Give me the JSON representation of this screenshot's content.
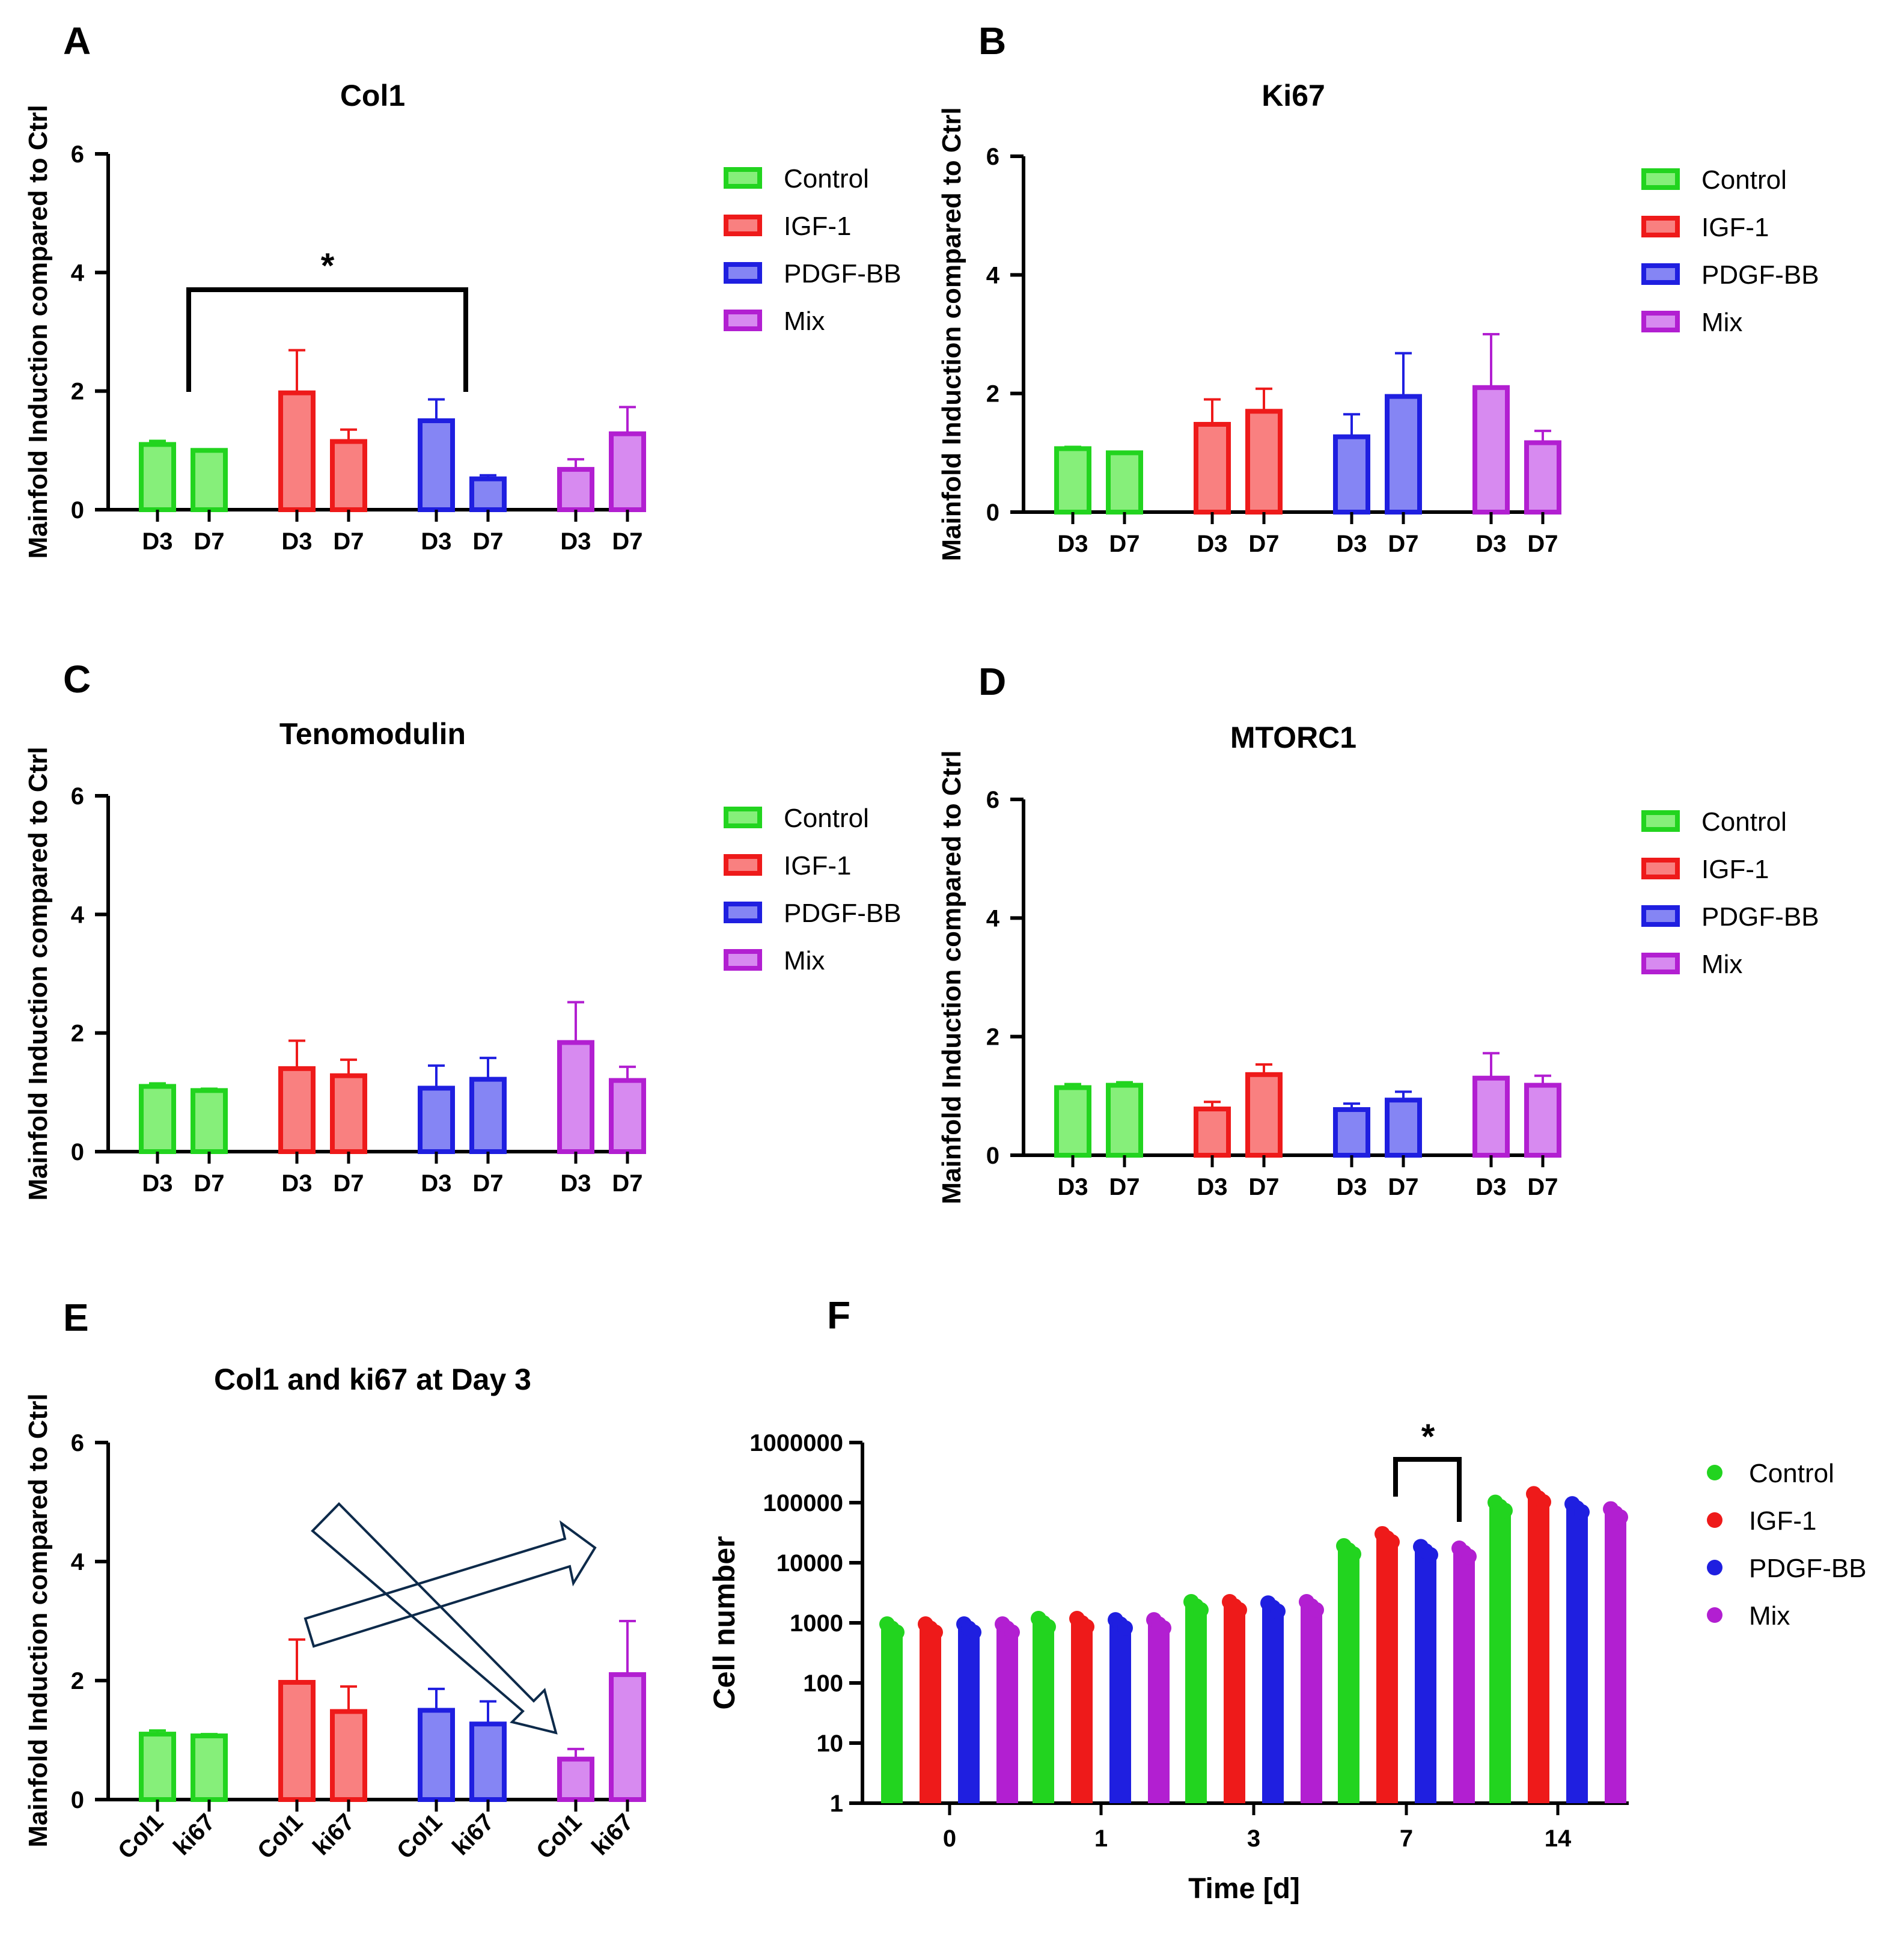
{
  "figure": {
    "panel_letters": [
      "A",
      "B",
      "C",
      "D",
      "E",
      "F"
    ],
    "shared_ylabel": "Mainfold Induction compared to Ctrl"
  },
  "colors": {
    "Control": "#22d41f",
    "IGF-1": "#ee1a1a",
    "PDGF-BB": "#1f1fe0",
    "Mix": "#b21fd1",
    "Control_fill": "#86ef7a",
    "IGF-1_fill": "#f98080",
    "PDGF-BB_fill": "#8585f4",
    "Mix_fill": "#d78af0",
    "axis": "#000000"
  },
  "legend": [
    "Control",
    "IGF-1",
    "PDGF-BB",
    " Mix"
  ],
  "chart_data": [
    {
      "panel": "A",
      "type": "bar",
      "title": "Col1",
      "ylabel": "Mainfold Induction compared to Ctrl",
      "xlabel": "",
      "ylim": [
        0,
        6
      ],
      "yticks": [
        0,
        2,
        4,
        6
      ],
      "groups": [
        "Control",
        "IGF-1",
        "PDGF-BB",
        "Mix"
      ],
      "categories": [
        "D3",
        "D7"
      ],
      "series": [
        {
          "name": "Control",
          "values": [
            1.1,
            1.0
          ],
          "errors": [
            0.06,
            0
          ]
        },
        {
          "name": "IGF-1",
          "values": [
            1.97,
            1.15
          ],
          "errors": [
            0.72,
            0.2
          ]
        },
        {
          "name": "PDGF-BB",
          "values": [
            1.5,
            0.52
          ],
          "errors": [
            0.36,
            0.06
          ]
        },
        {
          "name": "Mix",
          "values": [
            0.68,
            1.28
          ],
          "errors": [
            0.17,
            0.45
          ]
        }
      ],
      "significance": {
        "from": "Control D7",
        "to": "PDGF-BB D7",
        "label": "*"
      }
    },
    {
      "panel": "B",
      "type": "bar",
      "title": "Ki67",
      "ylabel": "Mainfold Induction compared to Ctrl",
      "xlabel": "",
      "ylim": [
        0,
        6
      ],
      "yticks": [
        0,
        2,
        4,
        6
      ],
      "groups": [
        "Control",
        "IGF-1",
        "PDGF-BB",
        "Mix"
      ],
      "categories": [
        "D3",
        "D7"
      ],
      "series": [
        {
          "name": "Control",
          "values": [
            1.07,
            1.0
          ],
          "errors": [
            0.03,
            0
          ]
        },
        {
          "name": "IGF-1",
          "values": [
            1.48,
            1.7
          ],
          "errors": [
            0.42,
            0.38
          ]
        },
        {
          "name": "PDGF-BB",
          "values": [
            1.27,
            1.95
          ],
          "errors": [
            0.38,
            0.73
          ]
        },
        {
          "name": "Mix",
          "values": [
            2.1,
            1.17
          ],
          "errors": [
            0.9,
            0.2
          ]
        }
      ]
    },
    {
      "panel": "C",
      "type": "bar",
      "title": "Tenomodulin",
      "ylabel": "Mainfold Induction compared to Ctrl",
      "xlabel": "",
      "ylim": [
        0,
        6
      ],
      "yticks": [
        0,
        2,
        4,
        6
      ],
      "groups": [
        "Control",
        "IGF-1",
        "PDGF-BB",
        "Mix"
      ],
      "categories": [
        "D3",
        "D7"
      ],
      "series": [
        {
          "name": "Control",
          "values": [
            1.1,
            1.03
          ],
          "errors": [
            0.05,
            0.03
          ]
        },
        {
          "name": "IGF-1",
          "values": [
            1.4,
            1.28
          ],
          "errors": [
            0.47,
            0.27
          ]
        },
        {
          "name": "PDGF-BB",
          "values": [
            1.07,
            1.22
          ],
          "errors": [
            0.38,
            0.36
          ]
        },
        {
          "name": "Mix",
          "values": [
            1.84,
            1.2
          ],
          "errors": [
            0.68,
            0.23
          ]
        }
      ]
    },
    {
      "panel": "D",
      "type": "bar",
      "title": "MTORC1",
      "ylabel": "Mainfold Induction compared to Ctrl",
      "xlabel": "",
      "ylim": [
        0,
        6
      ],
      "yticks": [
        0,
        2,
        4,
        6
      ],
      "groups": [
        "Control",
        "IGF-1",
        "PDGF-BB",
        "Mix"
      ],
      "categories": [
        "D3",
        "D7"
      ],
      "series": [
        {
          "name": "Control",
          "values": [
            1.14,
            1.18
          ],
          "errors": [
            0.06,
            0.05
          ]
        },
        {
          "name": "IGF-1",
          "values": [
            0.78,
            1.36
          ],
          "errors": [
            0.12,
            0.17
          ]
        },
        {
          "name": "PDGF-BB",
          "values": [
            0.77,
            0.93
          ],
          "errors": [
            0.1,
            0.14
          ]
        },
        {
          "name": "Mix",
          "values": [
            1.3,
            1.18
          ],
          "errors": [
            0.42,
            0.16
          ]
        }
      ]
    },
    {
      "panel": "E",
      "type": "bar",
      "title": "Col1 and ki67 at Day 3",
      "ylabel": "Mainfold Induction compared to Ctrl",
      "xlabel": "",
      "ylim": [
        0,
        6
      ],
      "yticks": [
        0,
        2,
        4,
        6
      ],
      "groups": [
        "Control",
        "IGF-1",
        "PDGF-BB",
        "Mix"
      ],
      "categories": [
        "Col1",
        "ki67"
      ],
      "series": [
        {
          "name": "Control",
          "values": [
            1.1,
            1.07
          ],
          "errors": [
            0.06,
            0.03
          ]
        },
        {
          "name": "IGF-1",
          "values": [
            1.97,
            1.48
          ],
          "errors": [
            0.72,
            0.42
          ]
        },
        {
          "name": "PDGF-BB",
          "values": [
            1.5,
            1.27
          ],
          "errors": [
            0.36,
            0.38
          ]
        },
        {
          "name": "Mix",
          "values": [
            0.68,
            2.1
          ],
          "errors": [
            0.17,
            0.9
          ]
        }
      ],
      "annotation": "crossing arrows"
    },
    {
      "panel": "F",
      "type": "bar",
      "title": "",
      "xlabel": "Time [d]",
      "ylabel": "Cell number",
      "yscale": "log",
      "ylim": [
        1,
        1000000
      ],
      "yticks": [
        1,
        10,
        100,
        1000,
        10000,
        100000,
        1000000
      ],
      "yticklabels": [
        "1",
        "10",
        "100",
        "1000",
        "10000",
        "100000",
        "1000000"
      ],
      "categories": [
        "0",
        "1",
        "3",
        "7",
        "14"
      ],
      "series": [
        {
          "name": "Control",
          "values": [
            850,
            1050,
            2000,
            17000,
            90000
          ]
        },
        {
          "name": "IGF-1",
          "values": [
            850,
            1050,
            2000,
            27000,
            125000
          ]
        },
        {
          "name": "PDGF-BB",
          "values": [
            850,
            1000,
            1900,
            16500,
            85000
          ]
        },
        {
          "name": "Mix",
          "values": [
            850,
            1000,
            2000,
            15500,
            70000
          ]
        }
      ],
      "significance": {
        "from": "IGF-1 day 7",
        "to": "Mix day 7",
        "label": "*"
      }
    }
  ]
}
